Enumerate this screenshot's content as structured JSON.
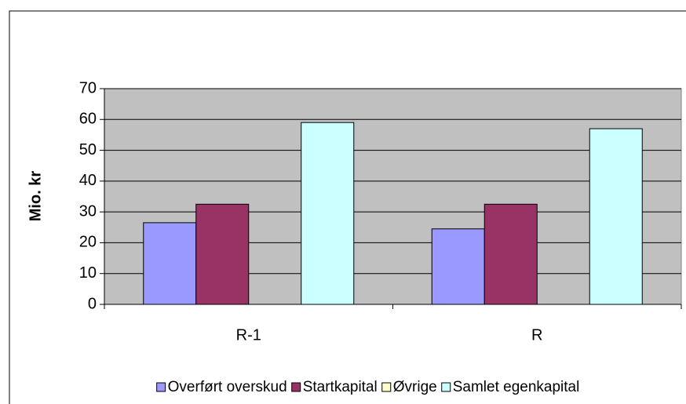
{
  "chart_data": {
    "type": "bar",
    "y_label": "Mio. kr",
    "categories": [
      "R-1",
      "R"
    ],
    "series": [
      {
        "name": "Overført overskud",
        "color": "#9999ff",
        "values": [
          26.5,
          24.5
        ]
      },
      {
        "name": "Startkapital",
        "color": "#993366",
        "values": [
          32.5,
          32.5
        ]
      },
      {
        "name": "Øvrige",
        "color": "#ffffcc",
        "values": [
          0,
          0
        ]
      },
      {
        "name": "Samlet egenkapital",
        "color": "#ccffff",
        "values": [
          59,
          57
        ]
      }
    ],
    "ylim": [
      0,
      70
    ],
    "yticks": [
      0,
      10,
      20,
      30,
      40,
      50,
      60,
      70
    ],
    "grid": true,
    "legend": "bottom",
    "plot_background": "#c0c0c0"
  }
}
